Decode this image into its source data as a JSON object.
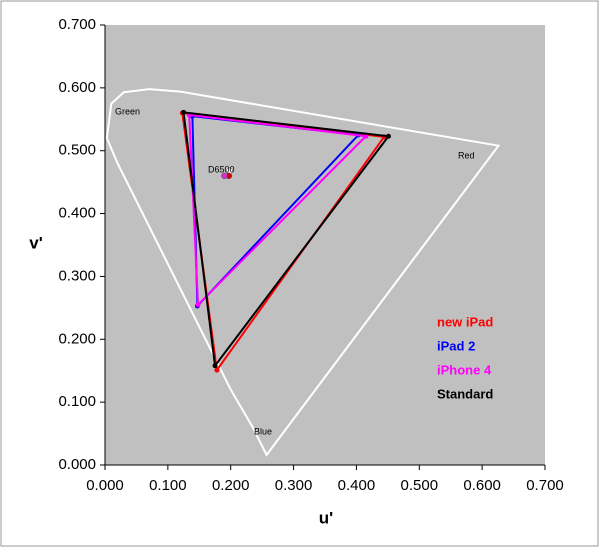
{
  "chart_data": {
    "type": "scatter",
    "xlabel": "u'",
    "ylabel": "v'",
    "xlim": [
      0,
      0.7
    ],
    "ylim": [
      0,
      0.7
    ],
    "xticks": [
      {
        "value": 0,
        "label": "0.000"
      },
      {
        "value": 0.1,
        "label": "0.100"
      },
      {
        "value": 0.2,
        "label": "0.200"
      },
      {
        "value": 0.3,
        "label": "0.300"
      },
      {
        "value": 0.4,
        "label": "0.400"
      },
      {
        "value": 0.5,
        "label": "0.500"
      },
      {
        "value": 0.6,
        "label": "0.600"
      },
      {
        "value": 0.7,
        "label": "0.700"
      }
    ],
    "yticks": [
      {
        "value": 0,
        "label": "0.000"
      },
      {
        "value": 0.1,
        "label": "0.100"
      },
      {
        "value": 0.2,
        "label": "0.200"
      },
      {
        "value": 0.3,
        "label": "0.300"
      },
      {
        "value": 0.4,
        "label": "0.400"
      },
      {
        "value": 0.5,
        "label": "0.500"
      },
      {
        "value": 0.6,
        "label": "0.600"
      },
      {
        "value": 0.7,
        "label": "0.700"
      }
    ],
    "background": "#c0c0c0",
    "outline": {
      "color": "#ffffff",
      "x": [
        0.257,
        0.235,
        0.2,
        0.16,
        0.11,
        0.06,
        0.02,
        0.003,
        0.01,
        0.03,
        0.07,
        0.12,
        0.626
      ],
      "y": [
        0.016,
        0.06,
        0.12,
        0.2,
        0.3,
        0.4,
        0.48,
        0.52,
        0.575,
        0.593,
        0.598,
        0.594,
        0.508
      ]
    },
    "annotations": [
      "Green",
      "Red",
      "Blue",
      "D6500"
    ],
    "white_points": {
      "x": [
        0.198,
        0.197,
        0.19
      ],
      "y": [
        0.468,
        0.46,
        0.46
      ],
      "colors": [
        "#ffffff",
        "#cc0000",
        "#cc33cc"
      ]
    },
    "series": [
      {
        "name": "new iPad",
        "color": "#ff0000",
        "x": [
          0.123,
          0.444,
          0.178
        ],
        "y": [
          0.56,
          0.522,
          0.151
        ]
      },
      {
        "name": "iPad 2",
        "color": "#0000ff",
        "x": [
          0.139,
          0.403,
          0.147
        ],
        "y": [
          0.555,
          0.525,
          0.253
        ]
      },
      {
        "name": "iPhone 4",
        "color": "#ff00ff",
        "x": [
          0.134,
          0.415,
          0.148
        ],
        "y": [
          0.557,
          0.523,
          0.255
        ]
      },
      {
        "name": "Standard",
        "color": "#000000",
        "x": [
          0.125,
          0.451,
          0.175
        ],
        "y": [
          0.561,
          0.523,
          0.158
        ]
      }
    ]
  }
}
